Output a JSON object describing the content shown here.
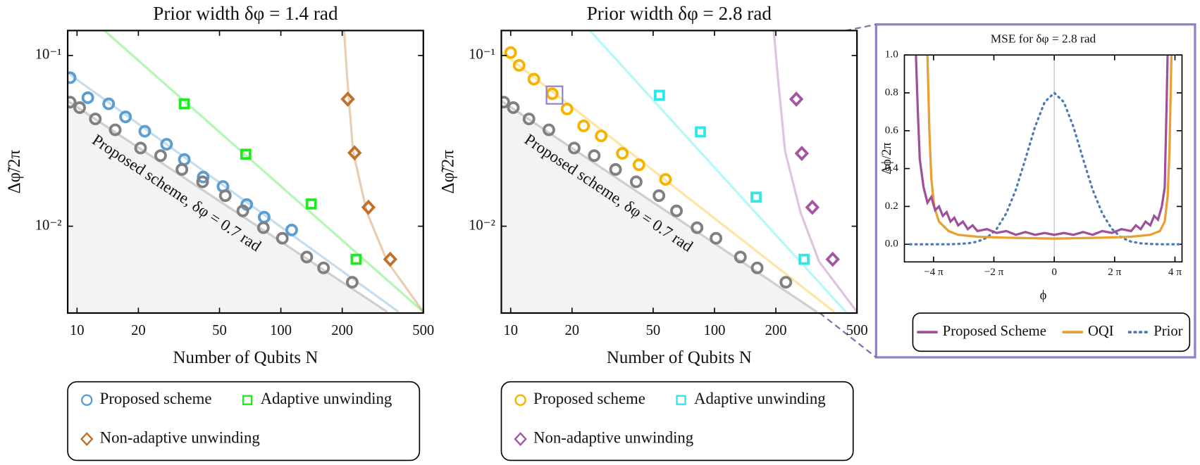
{
  "chart_data": [
    {
      "type": "scatter",
      "title": "Prior width δφ = 1.4 rad",
      "xlabel": "Number of Qubits N",
      "ylabel": "Δφ̃/2π",
      "log_x": true,
      "log_y": true,
      "xlim": [
        9,
        500
      ],
      "ylim": [
        0.0031,
        0.14
      ],
      "xticks": [
        10,
        20,
        50,
        100,
        200,
        500
      ],
      "yticks": [
        {
          "value": 0.1,
          "label": "10⁻¹"
        },
        {
          "value": 0.01,
          "label": "10⁻²"
        }
      ],
      "legend": "below",
      "series": [
        {
          "name": "Proposed scheme",
          "color": "#5b9ecf",
          "marker": "circle",
          "x": [
            9.25,
            11.3,
            14.3,
            17.3,
            21.5,
            27.5,
            33.6,
            41.6,
            52,
            68,
            82.8,
            113
          ],
          "values": [
            0.0741,
            0.0566,
            0.0521,
            0.0437,
            0.036,
            0.0302,
            0.0246,
            0.0194,
            0.0171,
            0.0134,
            0.0113,
            0.0095
          ],
          "fit": {
            "x": [
              9.25,
              378
            ],
            "values": [
              0.0772,
              0.00315
            ]
          }
        },
        {
          "name": "Adaptive unwinding",
          "color": "#22e822",
          "marker": "square",
          "x": [
            33.6,
            67.3,
            141,
            234
          ],
          "values": [
            0.0521,
            0.0264,
            0.0135,
            0.0064
          ],
          "fit": {
            "x": [
              13.3,
              500
            ],
            "values": [
              0.1436,
              0.00315
            ]
          }
        },
        {
          "name": "Non-adaptive unwinding",
          "color": "#c0702a",
          "marker": "diamond",
          "x": [
            213,
            230,
            269,
            344
          ],
          "values": [
            0.0555,
            0.0269,
            0.0129,
            0.0064
          ],
          "fit": {
            "x": [
              204,
              211,
              226,
              264,
              333,
              500
            ],
            "values": [
              0.1436,
              0.0772,
              0.0275,
              0.0121,
              0.0062,
              0.00315
            ]
          }
        },
        {
          "name": "Proposed scheme, δφ = 0.7 rad",
          "legend": false,
          "shade": true,
          "color": "#808080",
          "marker": "circle",
          "x": [
            9.25,
            10.3,
            12.3,
            15.4,
            20.5,
            25.7,
            32.7,
            41.3,
            53.4,
            65.1,
            82.1,
            101.7,
            134,
            162,
            224
          ],
          "values": [
            0.0533,
            0.0495,
            0.0425,
            0.0367,
            0.0287,
            0.0259,
            0.0215,
            0.0182,
            0.0151,
            0.0123,
            0.0098,
            0.0085,
            0.0066,
            0.0057,
            0.0047
          ],
          "fit": {
            "x": [
              9,
              333
            ],
            "values": [
              0.0543,
              0.00315
            ]
          }
        }
      ]
    },
    {
      "type": "scatter",
      "title": "Prior width δφ = 2.8 rad",
      "xlabel": "Number of Qubits N",
      "ylabel": "Δφ̃/2π",
      "log_x": true,
      "log_y": true,
      "xlim": [
        9,
        500
      ],
      "ylim": [
        0.0031,
        0.14
      ],
      "xticks": [
        10,
        20,
        50,
        100,
        200,
        500
      ],
      "yticks": [
        {
          "value": 0.1,
          "label": "10⁻¹"
        },
        {
          "value": 0.01,
          "label": "10⁻²"
        }
      ],
      "legend": "below",
      "series": [
        {
          "name": "Proposed scheme",
          "color": "#f5b400",
          "marker": "circle",
          "x": [
            10,
            11,
            13,
            16,
            18.9,
            22.8,
            27.8,
            35.3,
            42.6,
            57.5
          ],
          "values": [
            0.104,
            0.0875,
            0.0727,
            0.0597,
            0.0486,
            0.0387,
            0.0338,
            0.0267,
            0.0229,
            0.0188
          ],
          "fit": {
            "x": [
              9,
              387
            ],
            "values": [
              0.105,
              0.00315
            ]
          }
        },
        {
          "name": "Adaptive unwinding",
          "color": "#2ee8e8",
          "marker": "square",
          "x": [
            53.7,
            85.3,
            160,
            275
          ],
          "values": [
            0.0585,
            0.0357,
            0.0148,
            0.0064
          ],
          "fit": {
            "x": [
              24,
              441
            ],
            "values": [
              0.1436,
              0.00315
            ]
          }
        },
        {
          "name": "Non-adaptive unwinding",
          "color": "#a455a4",
          "marker": "diamond",
          "x": [
            252,
            268,
            302,
            380
          ],
          "values": [
            0.0555,
            0.0267,
            0.0129,
            0.0064
          ],
          "fit": {
            "x": [
              195,
              204,
              222,
              264,
              326,
              500
            ],
            "values": [
              0.1436,
              0.0772,
              0.0275,
              0.0121,
              0.0062,
              0.00315
            ]
          }
        },
        {
          "name": "Proposed scheme, δφ = 0.7 rad",
          "legend": false,
          "shade": true,
          "color": "#808080",
          "marker": "circle",
          "x": [
            9.25,
            10.3,
            12.3,
            15.4,
            20.5,
            25.7,
            32.7,
            41.3,
            53.4,
            65.1,
            82.1,
            101.7,
            134,
            162,
            224
          ],
          "values": [
            0.0533,
            0.0495,
            0.0425,
            0.0367,
            0.0287,
            0.0259,
            0.0215,
            0.0182,
            0.0151,
            0.0123,
            0.0098,
            0.0085,
            0.0066,
            0.0057,
            0.0047
          ],
          "fit": {
            "x": [
              9,
              318
            ],
            "values": [
              0.0543,
              0.00315
            ]
          }
        }
      ]
    },
    {
      "type": "line",
      "title": "MSE for δφ = 2.8 rad",
      "xlabel": "ϕ",
      "ylabel": "Δϕ/2π",
      "xlim": [
        -15.6,
        13.3
      ],
      "ylim": [
        -0.093,
        1.0
      ],
      "xticks": [
        {
          "value": -12.566,
          "label": "−4 π"
        },
        {
          "value": -6.283,
          "label": "−2 π"
        },
        0,
        {
          "value": 6.283,
          "label": "2 π"
        },
        {
          "value": 12.566,
          "label": "4 π"
        }
      ],
      "yticks": [
        {
          "value": 0,
          "label": "0.0"
        },
        0.2,
        0.4,
        0.6,
        0.8,
        {
          "value": 1,
          "label": "1.0"
        }
      ],
      "legend": "below",
      "series": [
        {
          "name": "Proposed Scheme",
          "color": "#a0509a",
          "dash": "solid",
          "x": [
            -14.4,
            -14.2,
            -14,
            -13.6,
            -13.2,
            -12.8,
            -12.4,
            -12,
            -11.6,
            -11.2,
            -10.8,
            -10.4,
            -10,
            -9.5,
            -9,
            -8.5,
            -8,
            -7,
            -6,
            -5,
            -4,
            -3,
            -2,
            -1,
            0,
            1,
            2,
            3,
            4,
            5,
            6,
            7,
            8,
            8.5,
            9,
            9.5,
            10,
            10.4,
            10.8,
            11.2,
            11.5,
            11.7,
            11.8
          ],
          "values": [
            1.0,
            0.7,
            0.45,
            0.3,
            0.22,
            0.25,
            0.18,
            0.2,
            0.15,
            0.17,
            0.12,
            0.14,
            0.1,
            0.12,
            0.08,
            0.1,
            0.07,
            0.08,
            0.06,
            0.07,
            0.05,
            0.065,
            0.05,
            0.06,
            0.05,
            0.06,
            0.05,
            0.065,
            0.05,
            0.07,
            0.06,
            0.08,
            0.07,
            0.1,
            0.08,
            0.12,
            0.1,
            0.15,
            0.13,
            0.2,
            0.3,
            0.75,
            1.0
          ]
        },
        {
          "name": "OQI",
          "color": "#e8a030",
          "dash": "solid",
          "x": [
            -13.2,
            -13,
            -12.8,
            -12.5,
            -12,
            -11,
            -10,
            -8,
            -5,
            0,
            5,
            8,
            10,
            11,
            11.5,
            11.8,
            12,
            12.2
          ],
          "values": [
            1.0,
            0.6,
            0.35,
            0.2,
            0.12,
            0.07,
            0.05,
            0.04,
            0.035,
            0.03,
            0.035,
            0.04,
            0.05,
            0.07,
            0.12,
            0.25,
            0.5,
            1.0
          ]
        },
        {
          "name": "Prior",
          "color": "#4a7ab8",
          "dash": "dotted",
          "x": [
            -15,
            -14,
            -13,
            -12,
            -11,
            -10,
            -9,
            -8,
            -7,
            -6,
            -5,
            -4,
            -3,
            -2,
            -1,
            0,
            1,
            2,
            3,
            4,
            5,
            6,
            7,
            8,
            9,
            10,
            11,
            12,
            13
          ],
          "values": [
            0,
            0,
            0,
            0,
            0,
            0.002,
            0.005,
            0.014,
            0.035,
            0.081,
            0.163,
            0.288,
            0.451,
            0.62,
            0.751,
            0.8,
            0.751,
            0.62,
            0.451,
            0.288,
            0.163,
            0.081,
            0.035,
            0.014,
            0.005,
            0.002,
            0,
            0,
            0
          ]
        }
      ]
    }
  ]
}
